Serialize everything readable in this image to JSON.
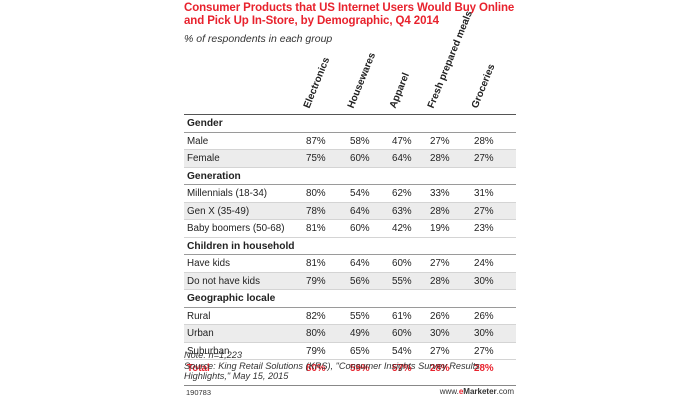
{
  "chart_data": {
    "type": "table",
    "title": "Consumer Products that US Internet Users Would Buy Online and Pick Up In-Store, by Demographic, Q4 2014",
    "subtitle": "% of respondents in each group",
    "columns": [
      "Electronics",
      "Housewares",
      "Apparel",
      "Fresh prepared meals",
      "Groceries"
    ],
    "sections": [
      {
        "name": "Gender",
        "rows": [
          {
            "label": "Male",
            "values": [
              "87%",
              "58%",
              "47%",
              "27%",
              "28%"
            ]
          },
          {
            "label": "Female",
            "values": [
              "75%",
              "60%",
              "64%",
              "28%",
              "27%"
            ]
          }
        ]
      },
      {
        "name": "Generation",
        "rows": [
          {
            "label": "Millennials (18-34)",
            "values": [
              "80%",
              "54%",
              "62%",
              "33%",
              "31%"
            ]
          },
          {
            "label": "Gen X (35-49)",
            "values": [
              "78%",
              "64%",
              "63%",
              "28%",
              "27%"
            ]
          },
          {
            "label": "Baby boomers (50-68)",
            "values": [
              "81%",
              "60%",
              "42%",
              "19%",
              "23%"
            ]
          }
        ]
      },
      {
        "name": "Children in household",
        "rows": [
          {
            "label": "Have kids",
            "values": [
              "81%",
              "64%",
              "60%",
              "27%",
              "24%"
            ]
          },
          {
            "label": "Do not have kids",
            "values": [
              "79%",
              "56%",
              "55%",
              "28%",
              "30%"
            ]
          }
        ]
      },
      {
        "name": "Geographic locale",
        "rows": [
          {
            "label": "Rural",
            "values": [
              "82%",
              "55%",
              "61%",
              "26%",
              "26%"
            ]
          },
          {
            "label": "Urban",
            "values": [
              "80%",
              "49%",
              "60%",
              "30%",
              "30%"
            ]
          },
          {
            "label": "Suburban",
            "values": [
              "79%",
              "65%",
              "54%",
              "27%",
              "27%"
            ]
          }
        ]
      }
    ],
    "total": {
      "label": "Total",
      "values": [
        "80%",
        "59%",
        "57%",
        "28%",
        "28%"
      ]
    },
    "note": "Note: n=1,223",
    "source": "Source: King Retail Solutions (KRS), \"Consumer Insights Survey Results Highlights,\" May 15, 2015",
    "chart_id": "190783",
    "brand_prefix": "www.",
    "brand_e": "e",
    "brand_name": "Marketer",
    "brand_suffix": ".com",
    "accent_color": "#e8222d"
  }
}
